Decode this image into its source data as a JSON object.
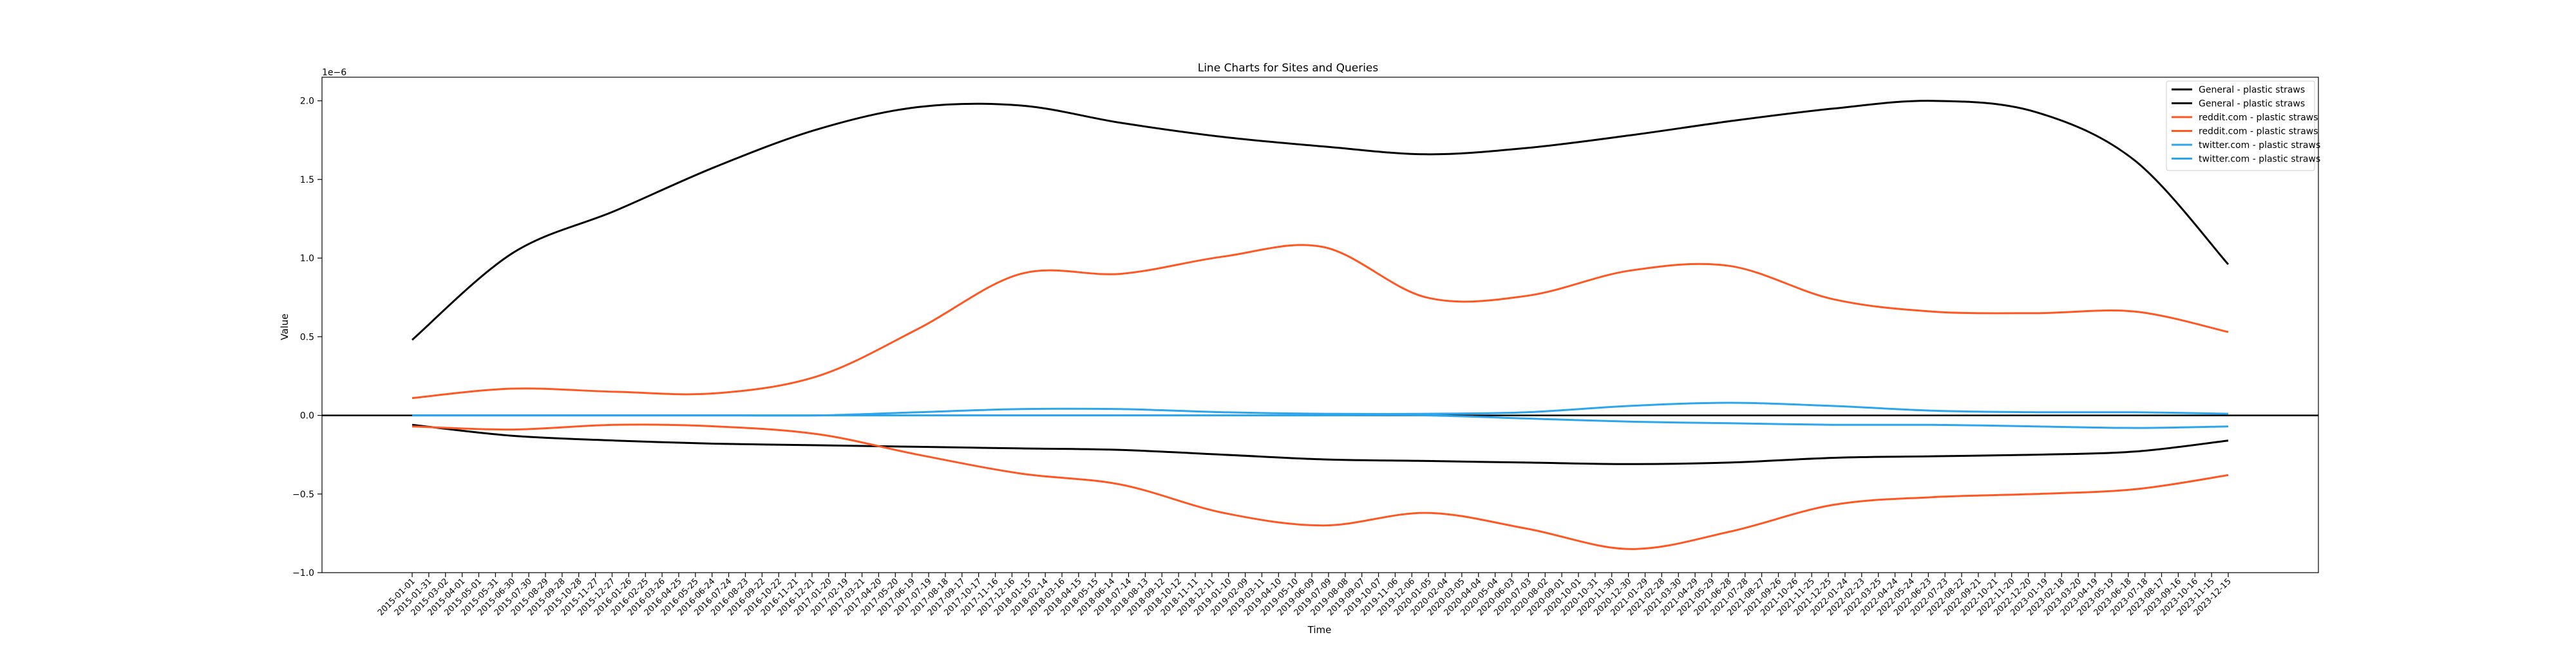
{
  "chart_data": {
    "type": "line",
    "title": "Line Charts for Sites and Queries",
    "xlabel": "Time",
    "ylabel": "Value",
    "y_offset_text": "1e−6",
    "ylim": [
      -1.0,
      2.15
    ],
    "yticks": [
      "−1.0",
      "−0.5",
      "0.0",
      "0.5",
      "1.0",
      "1.5",
      "2.0"
    ],
    "ytick_values": [
      -1.0,
      -0.5,
      0.0,
      0.5,
      1.0,
      1.5,
      2.0
    ],
    "zero_line": true,
    "grid": false,
    "legend_position": "top-right",
    "x_dates": [
      "2015-01-01",
      "2015-01-31",
      "2015-03-02",
      "2015-04-01",
      "2015-05-01",
      "2015-05-31",
      "2015-06-30",
      "2015-07-30",
      "2015-08-29",
      "2015-09-28",
      "2015-10-28",
      "2015-11-27",
      "2015-12-27",
      "2016-01-26",
      "2016-02-25",
      "2016-03-26",
      "2016-04-25",
      "2016-05-25",
      "2016-06-24",
      "2016-07-24",
      "2016-08-23",
      "2016-09-22",
      "2016-10-22",
      "2016-11-21",
      "2016-12-21",
      "2017-01-20",
      "2017-02-19",
      "2017-03-21",
      "2017-04-20",
      "2017-05-20",
      "2017-06-19",
      "2017-07-19",
      "2017-08-18",
      "2017-09-17",
      "2017-10-17",
      "2017-11-16",
      "2017-12-16",
      "2018-01-15",
      "2018-02-14",
      "2018-03-16",
      "2018-04-15",
      "2018-05-15",
      "2018-06-14",
      "2018-07-14",
      "2018-08-13",
      "2018-09-12",
      "2018-10-12",
      "2018-11-11",
      "2018-12-11",
      "2019-01-10",
      "2019-02-09",
      "2019-03-11",
      "2019-04-10",
      "2019-05-10",
      "2019-06-09",
      "2019-07-09",
      "2019-08-08",
      "2019-09-07",
      "2019-10-07",
      "2019-11-06",
      "2019-12-06",
      "2020-01-05",
      "2020-02-04",
      "2020-03-05",
      "2020-04-04",
      "2020-05-04",
      "2020-06-03",
      "2020-07-03",
      "2020-08-02",
      "2020-09-01",
      "2020-10-01",
      "2020-10-31",
      "2020-11-30",
      "2020-12-30",
      "2021-01-29",
      "2021-02-28",
      "2021-03-30",
      "2021-04-29",
      "2021-05-29",
      "2021-06-28",
      "2021-07-28",
      "2021-08-27",
      "2021-09-26",
      "2021-10-26",
      "2021-11-25",
      "2021-12-25",
      "2022-01-24",
      "2022-02-23",
      "2022-03-25",
      "2022-04-24",
      "2022-05-24",
      "2022-06-23",
      "2022-07-23",
      "2022-08-22",
      "2022-09-21",
      "2022-10-21",
      "2022-11-20",
      "2022-12-20",
      "2023-01-19",
      "2023-02-18",
      "2023-03-20",
      "2023-04-19",
      "2023-05-19",
      "2023-06-18",
      "2023-07-18",
      "2023-08-17",
      "2023-09-16",
      "2023-10-16",
      "2023-11-15",
      "2023-12-15"
    ],
    "series_x": [
      "2015-01-01",
      "2015-06-30",
      "2016-01-01",
      "2016-06-30",
      "2017-01-01",
      "2017-06-30",
      "2018-01-01",
      "2018-06-30",
      "2019-01-01",
      "2019-06-30",
      "2020-01-01",
      "2020-06-30",
      "2021-01-01",
      "2021-06-30",
      "2022-01-01",
      "2022-06-30",
      "2023-01-01",
      "2023-06-30",
      "2023-12-15"
    ],
    "series": [
      {
        "name": "General - plastic straws",
        "color": "#000000",
        "values": [
          0.48,
          1.03,
          1.3,
          1.58,
          1.82,
          1.96,
          1.97,
          1.86,
          1.77,
          1.71,
          1.66,
          1.7,
          1.78,
          1.87,
          1.95,
          2.0,
          1.93,
          1.62,
          0.96
        ]
      },
      {
        "name": "General - plastic straws",
        "color": "#000000",
        "values": [
          -0.06,
          -0.13,
          -0.16,
          -0.18,
          -0.19,
          -0.2,
          -0.21,
          -0.22,
          -0.25,
          -0.28,
          -0.29,
          -0.3,
          -0.31,
          -0.3,
          -0.27,
          -0.26,
          -0.25,
          -0.23,
          -0.16
        ]
      },
      {
        "name": "reddit.com - plastic straws",
        "color": "#ff5722",
        "values": [
          0.11,
          0.17,
          0.15,
          0.14,
          0.25,
          0.55,
          0.9,
          0.9,
          1.01,
          1.07,
          0.75,
          0.76,
          0.92,
          0.95,
          0.74,
          0.66,
          0.65,
          0.66,
          0.53
        ]
      },
      {
        "name": "reddit.com - plastic straws",
        "color": "#ff5722",
        "values": [
          -0.07,
          -0.09,
          -0.06,
          -0.07,
          -0.12,
          -0.25,
          -0.37,
          -0.44,
          -0.62,
          -0.7,
          -0.62,
          -0.72,
          -0.85,
          -0.74,
          -0.57,
          -0.52,
          -0.5,
          -0.47,
          -0.38
        ]
      },
      {
        "name": "twitter.com - plastic straws",
        "color": "#2aa5ee",
        "values": [
          0.0,
          0.0,
          0.0,
          0.0,
          0.0,
          0.02,
          0.04,
          0.04,
          0.02,
          0.01,
          0.01,
          0.02,
          0.06,
          0.08,
          0.06,
          0.03,
          0.02,
          0.02,
          0.01
        ]
      },
      {
        "name": "twitter.com - plastic straws",
        "color": "#2aa5ee",
        "values": [
          0.0,
          0.0,
          0.0,
          0.0,
          0.0,
          0.0,
          0.0,
          0.0,
          0.0,
          0.0,
          0.0,
          -0.02,
          -0.04,
          -0.05,
          -0.06,
          -0.06,
          -0.07,
          -0.08,
          -0.07
        ]
      }
    ]
  }
}
